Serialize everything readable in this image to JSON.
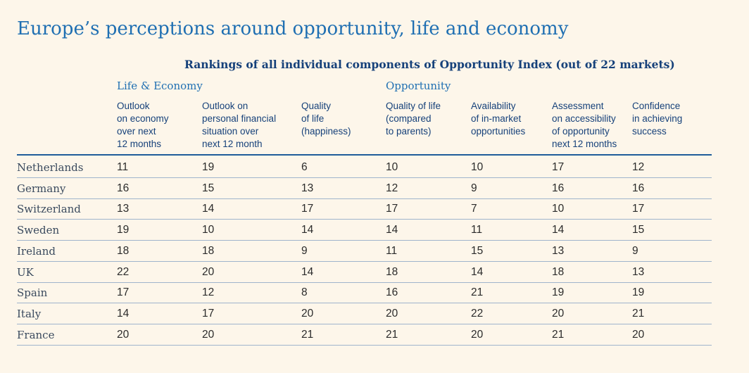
{
  "title": "Europe’s perceptions around opportunity, life and economy",
  "subtitle": "Rankings of all individual components of Opportunity Index (out of 22 markets)",
  "groups": {
    "life_economy": "Life & Economy",
    "opportunity": "Opportunity"
  },
  "columns": [
    [
      "Outlook",
      "on economy",
      "over next",
      "12 months"
    ],
    [
      "Outlook on",
      "personal financial",
      "situation over",
      "next 12 month"
    ],
    [
      "Quality",
      "of life",
      "(happiness)"
    ],
    [
      "Quality of life",
      "(compared",
      "to parents)"
    ],
    [
      "Availability",
      "of in-market",
      "opportunities"
    ],
    [
      "Assessment",
      "on accessibility",
      "of opportunity",
      "next 12 months"
    ],
    [
      "Confidence",
      "in achieving",
      "success"
    ]
  ],
  "rows": [
    {
      "country": "Netherlands",
      "values": [
        "11",
        "19",
        "6",
        "10",
        "10",
        "17",
        "12"
      ]
    },
    {
      "country": "Germany",
      "values": [
        "16",
        "15",
        "13",
        "12",
        "9",
        "16",
        "16"
      ]
    },
    {
      "country": "Switzerland",
      "values": [
        "13",
        "14",
        "17",
        "17",
        "7",
        "10",
        "17"
      ]
    },
    {
      "country": "Sweden",
      "values": [
        "19",
        "10",
        "14",
        "14",
        "11",
        "14",
        "15"
      ]
    },
    {
      "country": "Ireland",
      "values": [
        "18",
        "18",
        "9",
        "11",
        "15",
        "13",
        "9"
      ]
    },
    {
      "country": "UK",
      "values": [
        "22",
        "20",
        "14",
        "18",
        "14",
        "18",
        "13"
      ]
    },
    {
      "country": "Spain",
      "values": [
        "17",
        "12",
        "8",
        "16",
        "21",
        "19",
        "19"
      ]
    },
    {
      "country": "Italy",
      "values": [
        "14",
        "17",
        "20",
        "20",
        "22",
        "20",
        "21"
      ]
    },
    {
      "country": "France",
      "values": [
        "20",
        "20",
        "21",
        "21",
        "20",
        "21",
        "20"
      ]
    }
  ]
}
